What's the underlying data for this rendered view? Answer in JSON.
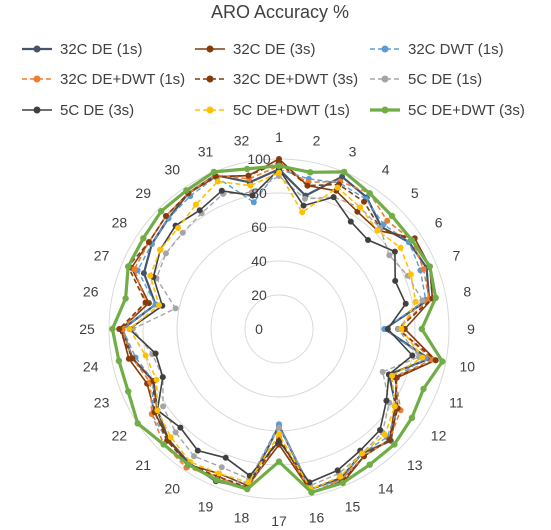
{
  "chart_data": {
    "type": "radar",
    "title": "ARO Accuracy %",
    "categories": [
      "1",
      "2",
      "3",
      "4",
      "5",
      "6",
      "7",
      "8",
      "9",
      "10",
      "11",
      "12",
      "13",
      "14",
      "15",
      "16",
      "17",
      "18",
      "19",
      "20",
      "21",
      "22",
      "23",
      "24",
      "25",
      "26",
      "27",
      "28",
      "29",
      "30",
      "31",
      "32"
    ],
    "radial_ticks": [
      "0",
      "20",
      "40",
      "60",
      "80",
      "100"
    ],
    "rlim": [
      0,
      100
    ],
    "grid": true,
    "legend_position": "top",
    "series": [
      {
        "name": "32C DE (1s)",
        "color": "#44546A",
        "dash": "solid",
        "width": 2.2,
        "values": [
          94,
          80,
          97,
          93,
          85,
          92,
          94,
          90,
          62,
          90,
          70,
          83,
          93,
          88,
          95,
          96,
          57,
          95,
          97,
          95,
          92,
          86,
          80,
          88,
          92,
          74,
          86,
          90,
          92,
          96,
          98,
          88
        ]
      },
      {
        "name": "32C DE (3s)",
        "color": "#843C0C",
        "dash": "solid",
        "width": 1.6,
        "values": [
          100,
          86,
          88,
          83,
          82,
          96,
          96,
          92,
          74,
          94,
          75,
          82,
          92,
          90,
          98,
          98,
          68,
          94,
          92,
          96,
          92,
          88,
          84,
          90,
          93,
          78,
          94,
          92,
          94,
          96,
          97,
          92
        ]
      },
      {
        "name": "32C DWT (1s)",
        "color": "#5B9BD5",
        "dash": "dashed",
        "width": 1.4,
        "values": [
          94,
          90,
          93,
          92,
          87,
          92,
          90,
          88,
          62,
          88,
          74,
          84,
          90,
          88,
          96,
          96,
          56,
          92,
          96,
          96,
          93,
          90,
          80,
          86,
          92,
          74,
          90,
          90,
          92,
          94,
          97,
          76
        ]
      },
      {
        "name": "32C DE+DWT (1s)",
        "color": "#ED7D31",
        "dash": "dashed",
        "width": 1.6,
        "values": [
          96,
          88,
          94,
          96,
          90,
          94,
          92,
          90,
          70,
          92,
          74,
          86,
          92,
          90,
          96,
          98,
          65,
          96,
          94,
          98,
          96,
          90,
          82,
          88,
          92,
          80,
          92,
          92,
          94,
          96,
          98,
          90
        ]
      },
      {
        "name": "32C DE+DWT (3s)",
        "color": "#843C0C",
        "dash": "dashed",
        "width": 1.6,
        "values": [
          98,
          86,
          92,
          90,
          84,
          94,
          96,
          92,
          70,
          94,
          74,
          84,
          92,
          90,
          97,
          98,
          64,
          95,
          94,
          96,
          93,
          88,
          80,
          88,
          94,
          80,
          96,
          92,
          94,
          96,
          97,
          92
        ]
      },
      {
        "name": "5C DE (1s)",
        "color": "#A5A5A5",
        "dash": "dashed",
        "width": 1.4,
        "values": [
          90,
          78,
          84,
          86,
          84,
          78,
          82,
          86,
          70,
          84,
          66,
          78,
          86,
          88,
          92,
          94,
          58,
          90,
          88,
          90,
          86,
          82,
          74,
          76,
          86,
          62,
          78,
          80,
          80,
          82,
          86,
          82
        ]
      },
      {
        "name": "5C DE (3s)",
        "color": "#404040",
        "dash": "solid",
        "width": 1.6,
        "values": [
          94,
          74,
          84,
          76,
          74,
          82,
          74,
          76,
          64,
          80,
          70,
          76,
          84,
          86,
          90,
          92,
          66,
          88,
          82,
          86,
          82,
          86,
          74,
          74,
          88,
          70,
          80,
          84,
          86,
          84,
          88,
          80
        ]
      },
      {
        "name": "5C DE+DWT (1s)",
        "color": "#FFC000",
        "dash": "dashed",
        "width": 1.6,
        "values": [
          92,
          70,
          90,
          86,
          82,
          86,
          84,
          82,
          72,
          86,
          72,
          82,
          88,
          88,
          94,
          96,
          62,
          92,
          92,
          94,
          90,
          86,
          78,
          80,
          88,
          72,
          82,
          84,
          84,
          88,
          94,
          86
        ]
      },
      {
        "name": "5C DE+DWT (3s)",
        "color": "#70AD47",
        "dash": "solid",
        "width": 3.2,
        "values": [
          96,
          94,
          100,
          96,
          94,
          94,
          96,
          94,
          84,
          98,
          92,
          94,
          96,
          96,
          98,
          98,
          78,
          96,
          96,
          96,
          96,
          100,
          96,
          96,
          98,
          92,
          96,
          96,
          98,
          98,
          100,
          96
        ]
      }
    ]
  }
}
